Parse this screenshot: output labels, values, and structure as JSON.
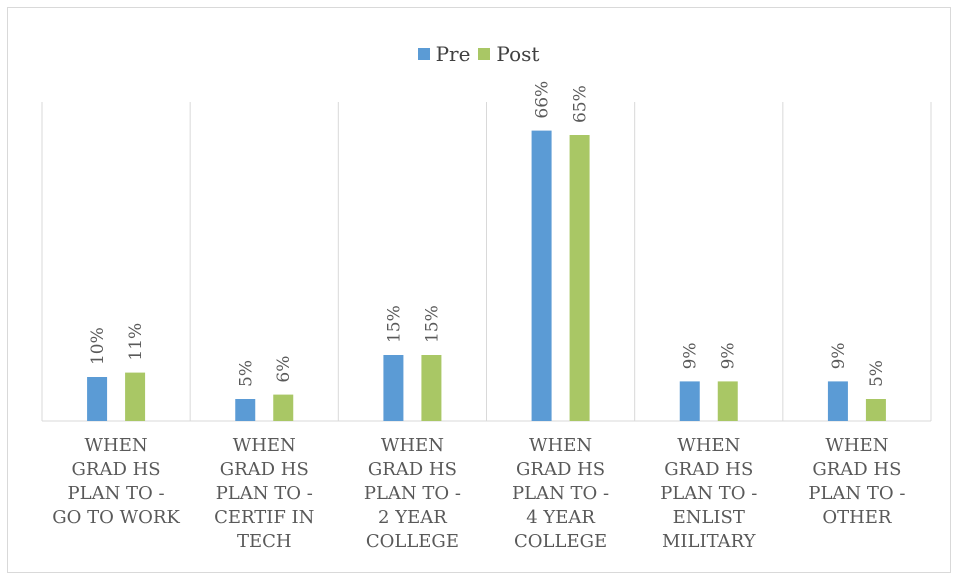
{
  "colors": {
    "pre": "#5b9bd5",
    "post": "#a9c765",
    "grid": "#d9d9d9",
    "text": "#595959"
  },
  "chart_data": {
    "type": "bar",
    "title": "",
    "xlabel": "",
    "ylabel": "",
    "ylim": [
      0,
      70
    ],
    "grid": "vertical category separators",
    "legend_position": "top",
    "categories": [
      "WHEN GRAD HS PLAN TO - GO TO WORK",
      "WHEN GRAD HS PLAN TO - CERTIF IN TECH",
      "WHEN GRAD HS PLAN TO - 2 YEAR COLLEGE",
      "WHEN GRAD HS PLAN TO - 4 YEAR COLLEGE",
      "WHEN GRAD HS PLAN TO - ENLIST MILITARY",
      "WHEN GRAD HS PLAN TO - OTHER"
    ],
    "category_lines": [
      [
        "WHEN",
        "GRAD HS",
        "PLAN TO -",
        "GO TO WORK"
      ],
      [
        "WHEN",
        "GRAD HS",
        "PLAN TO -",
        "CERTIF IN",
        "TECH"
      ],
      [
        "WHEN",
        "GRAD HS",
        "PLAN TO -",
        "2 YEAR",
        "COLLEGE"
      ],
      [
        "WHEN",
        "GRAD HS",
        "PLAN TO -",
        "4 YEAR",
        "COLLEGE"
      ],
      [
        "WHEN",
        "GRAD HS",
        "PLAN TO -",
        "ENLIST",
        "MILITARY"
      ],
      [
        "WHEN",
        "GRAD HS",
        "PLAN TO -",
        "OTHER"
      ]
    ],
    "series": [
      {
        "name": "Pre",
        "values": [
          10,
          5,
          15,
          66,
          9,
          9
        ],
        "labels": [
          "10%",
          "5%",
          "15%",
          "66%",
          "9%",
          "9%"
        ]
      },
      {
        "name": "Post",
        "values": [
          11,
          6,
          15,
          65,
          9,
          5
        ],
        "labels": [
          "11%",
          "6%",
          "15%",
          "65%",
          "9%",
          "5%"
        ]
      }
    ]
  }
}
